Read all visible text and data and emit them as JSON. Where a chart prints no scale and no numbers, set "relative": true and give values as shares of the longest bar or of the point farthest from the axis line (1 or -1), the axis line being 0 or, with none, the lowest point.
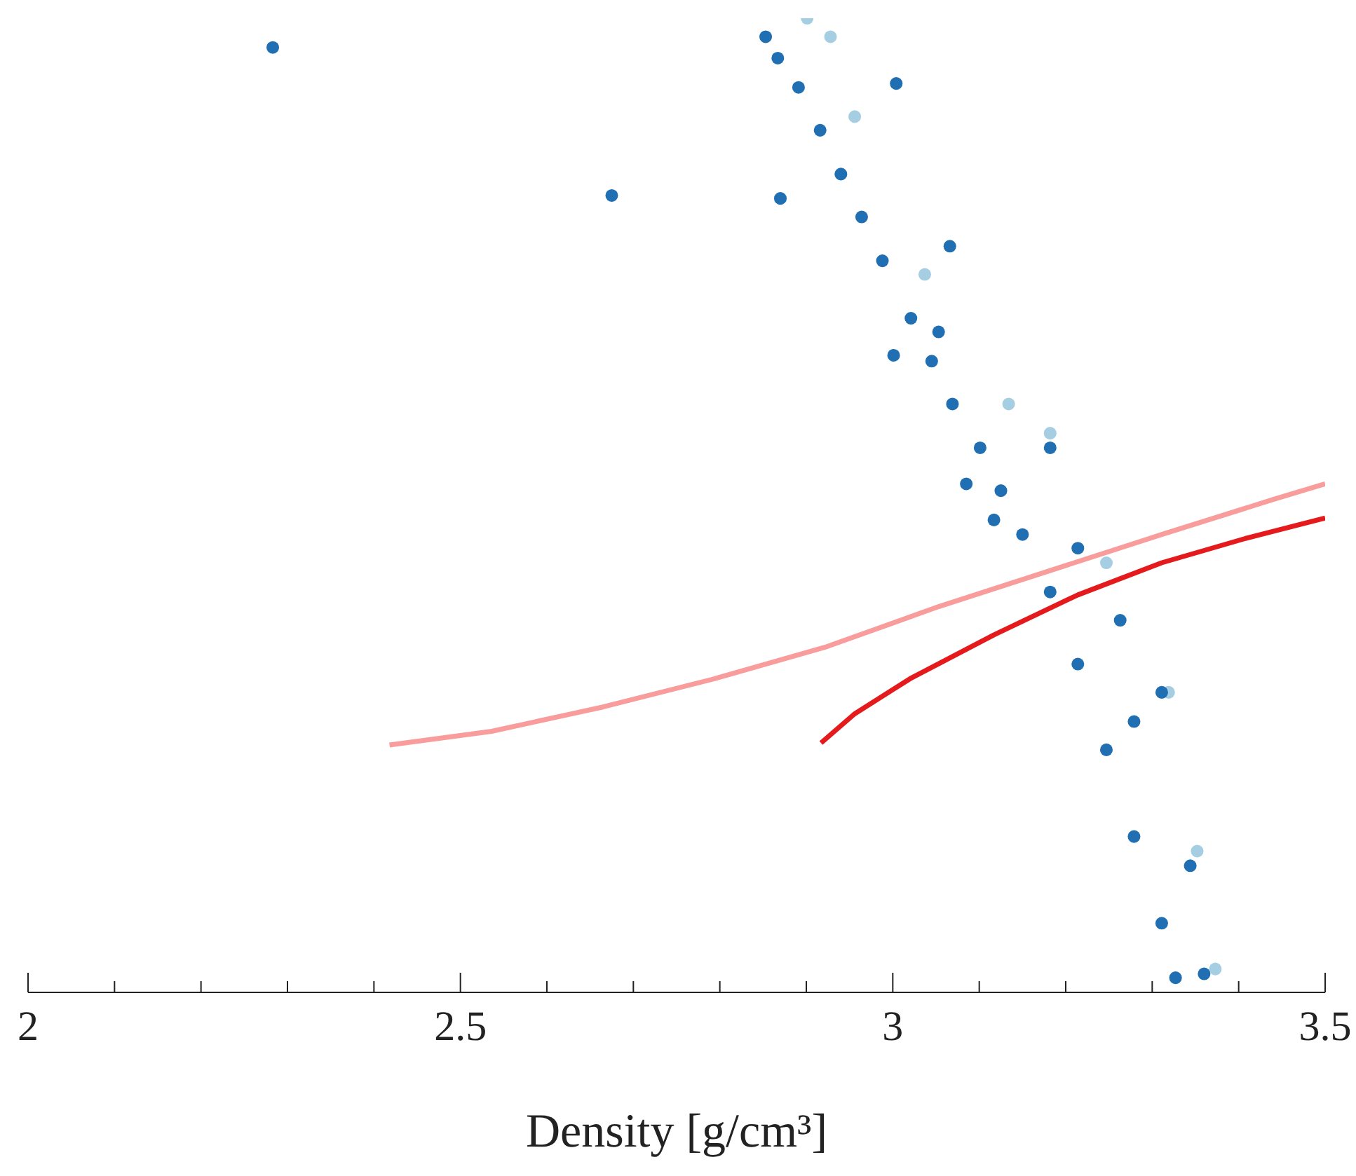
{
  "chart_data": {
    "type": "scatter",
    "xlabel": "Density [g/cm³]",
    "relative": true,
    "marker": "circle",
    "grid": false,
    "xlim": [
      2,
      3.5
    ],
    "xticks": [
      2,
      {
        "value": 2.1,
        "label": null
      },
      {
        "value": 2.2,
        "label": null
      },
      {
        "value": 2.3,
        "label": null
      },
      {
        "value": 2.4,
        "label": null
      },
      2.5,
      {
        "value": 2.6,
        "label": null
      },
      {
        "value": 2.7,
        "label": null
      },
      {
        "value": 2.8,
        "label": null
      },
      {
        "value": 2.9,
        "label": null
      },
      3,
      {
        "value": 3.1,
        "label": null
      },
      {
        "value": 3.2,
        "label": null
      },
      {
        "value": 3.3,
        "label": null
      },
      {
        "value": 3.4,
        "label": null
      },
      3.5
    ],
    "series": [
      {
        "color": "#a6cee3",
        "x": [
          2.901,
          2.928,
          2.956,
          3.037,
          3.134,
          3.182,
          3.247,
          3.319,
          3.352,
          3.373
        ],
        "values": [
          1.0,
          0.981,
          0.899,
          0.737,
          0.604,
          0.574,
          0.441,
          0.308,
          0.145,
          0.024
        ]
      },
      {
        "color": "#1f6fb2",
        "x": [
          2.283,
          2.675,
          2.87,
          3.004,
          3.001,
          3.085,
          2.853,
          2.867,
          2.891,
          2.916,
          2.94,
          2.964,
          2.988,
          3.021,
          3.045,
          3.069,
          3.101,
          3.125,
          3.15,
          3.182,
          3.214,
          3.247,
          3.279,
          3.311,
          3.327,
          3.36,
          3.214,
          3.279,
          3.311,
          3.344,
          3.117,
          3.182,
          3.066,
          3.053,
          3.263
        ],
        "values": [
          0.97,
          0.818,
          0.815,
          0.933,
          0.654,
          0.522,
          0.981,
          0.959,
          0.929,
          0.885,
          0.84,
          0.796,
          0.751,
          0.692,
          0.648,
          0.604,
          0.559,
          0.515,
          0.47,
          0.411,
          0.337,
          0.249,
          0.16,
          0.071,
          0.015,
          0.019,
          0.456,
          0.278,
          0.308,
          0.13,
          0.485,
          0.559,
          0.766,
          0.678,
          0.382
        ]
      },
      {
        "type": "line",
        "color": "#f89c9c",
        "marker": "none",
        "x": [
          2.418,
          2.536,
          2.665,
          2.794,
          2.924,
          3.053,
          3.182,
          3.311,
          3.44,
          3.5
        ],
        "values": [
          0.254,
          0.268,
          0.293,
          0.322,
          0.355,
          0.396,
          0.433,
          0.47,
          0.506,
          0.522
        ]
      },
      {
        "type": "line",
        "color": "#e41a1c",
        "marker": "none",
        "x": [
          2.917,
          2.956,
          3.02,
          3.117,
          3.214,
          3.311,
          3.408,
          3.5
        ],
        "values": [
          0.256,
          0.286,
          0.322,
          0.367,
          0.408,
          0.441,
          0.466,
          0.487
        ]
      }
    ]
  }
}
